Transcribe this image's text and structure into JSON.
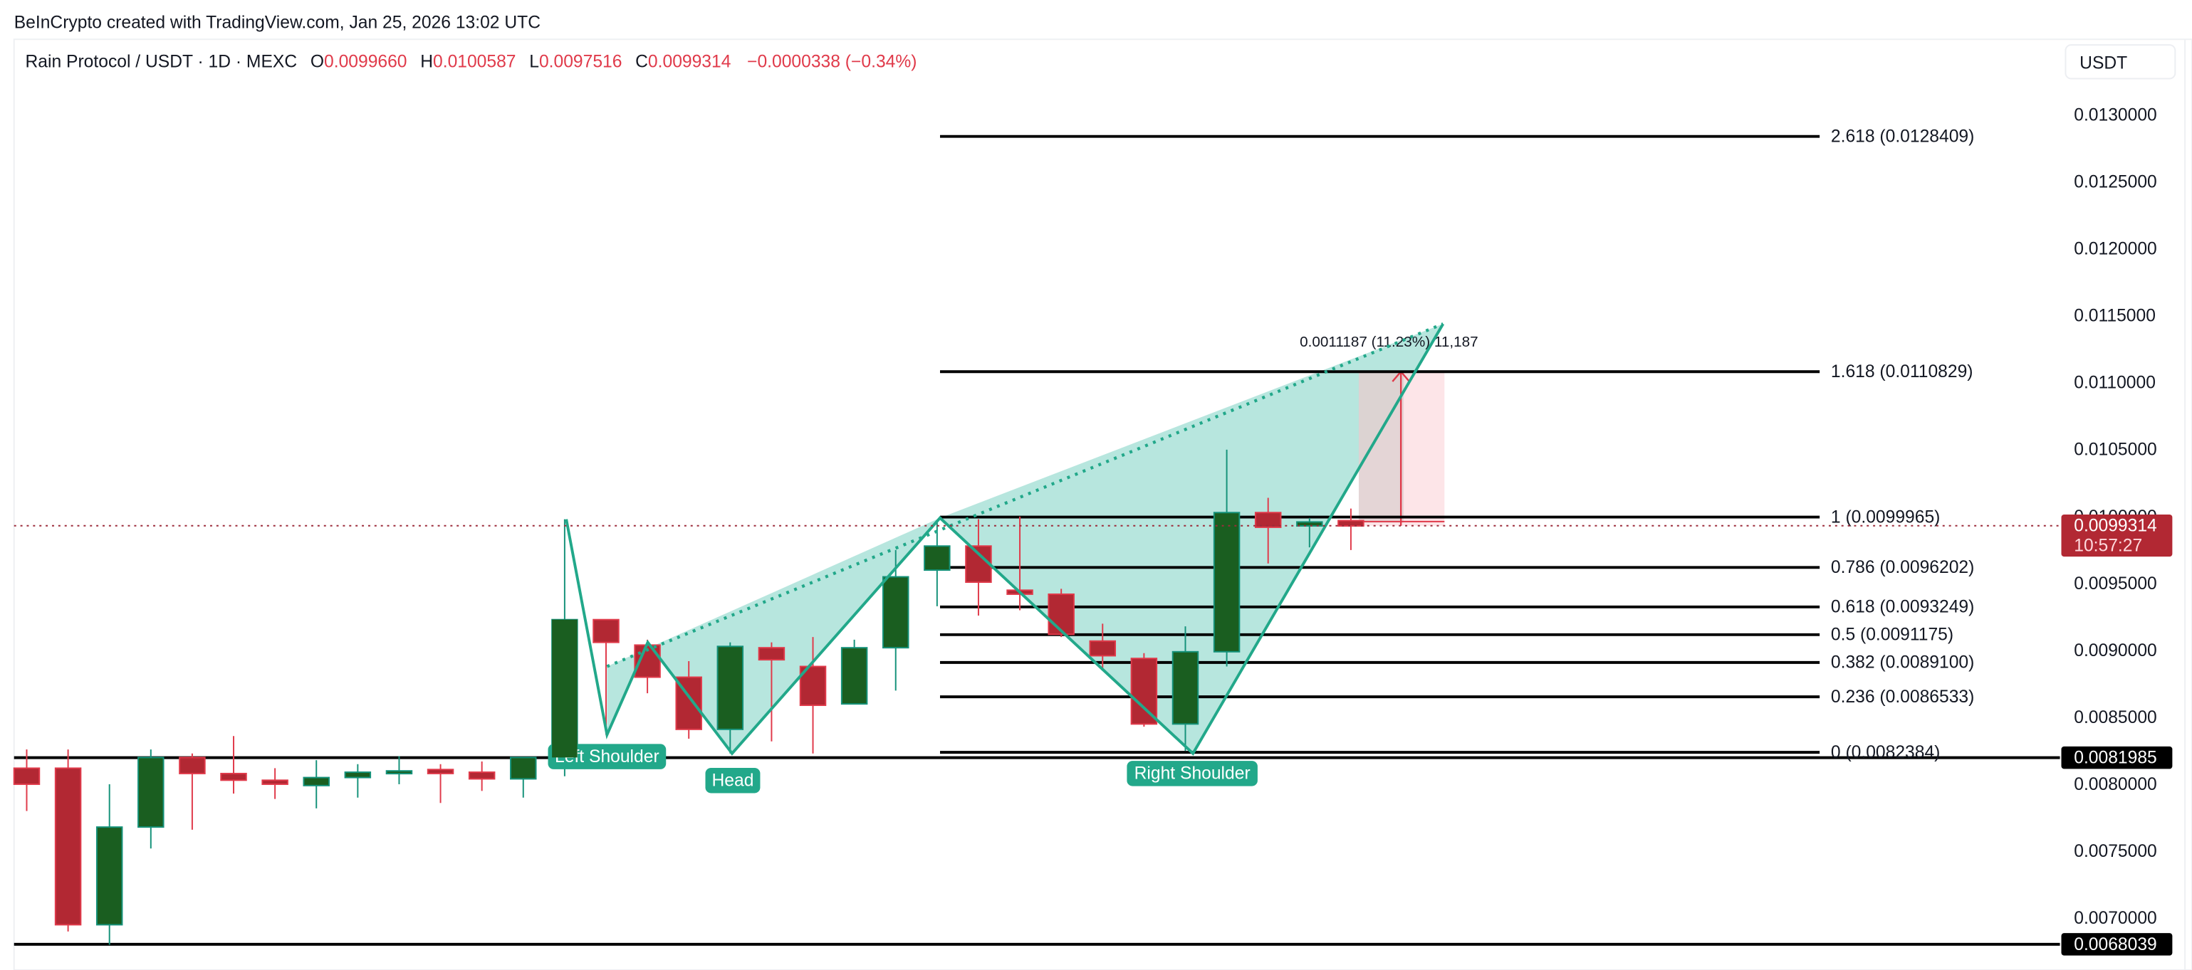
{
  "header": {
    "attribution": "BeInCrypto created with TradingView.com, Jan 25, 2026 13:02 UTC"
  },
  "legend": {
    "symbol": "Rain Protocol / USDT · 1D · MEXC",
    "open_label": "O",
    "open": "0.0099660",
    "high_label": "H",
    "high": "0.0100587",
    "low_label": "L",
    "low": "0.0097516",
    "close_label": "C",
    "close": "0.0099314",
    "change": "−0.0000338 (−0.34%)"
  },
  "axis": {
    "currency_button": "USDT",
    "ticks": [
      "0.0130000",
      "0.0125000",
      "0.0120000",
      "0.0115000",
      "0.0110000",
      "0.0105000",
      "0.0100000",
      "0.0095000",
      "0.0090000",
      "0.0085000",
      "0.0080000",
      "0.0075000",
      "0.0070000"
    ],
    "last_price_label": "0.0099314",
    "countdown": "10:57:27",
    "support_label": "0.0081985",
    "low_support_label": "0.0068039"
  },
  "fib_levels": [
    {
      "ratio": "2.618",
      "price": 0.0128409,
      "label": "2.618 (0.0128409)"
    },
    {
      "ratio": "1.618",
      "price": 0.0110829,
      "label": "1.618 (0.0110829)"
    },
    {
      "ratio": "1",
      "price": 0.0099965,
      "label": "1 (0.0099965)"
    },
    {
      "ratio": "0.786",
      "price": 0.0096202,
      "label": "0.786 (0.0096202)"
    },
    {
      "ratio": "0.618",
      "price": 0.0093249,
      "label": "0.618 (0.0093249)"
    },
    {
      "ratio": "0.5",
      "price": 0.0091175,
      "label": "0.5 (0.0091175)"
    },
    {
      "ratio": "0.382",
      "price": 0.00891,
      "label": "0.382 (0.0089100)"
    },
    {
      "ratio": "0.236",
      "price": 0.0086533,
      "label": "0.236 (0.0086533)"
    },
    {
      "ratio": "0",
      "price": 0.0082384,
      "label": "0 (0.0082384)"
    }
  ],
  "pattern_labels": {
    "left_shoulder": "Left Shoulder",
    "head": "Head",
    "right_shoulder": "Right Shoulder"
  },
  "measure": {
    "label": "0.0011187 (11.23%) 11,187"
  },
  "colors": {
    "up": "#1a5e20",
    "up_border": "#15927a",
    "down": "#b22833",
    "down_border": "#e03a4a",
    "pattern": "#22a88a",
    "pattern_fill": "#b3e5dc",
    "measure_fill": "#fde0e4",
    "last_price": "#b22833"
  },
  "chart_data": {
    "type": "candlestick",
    "title": "Rain Protocol / USDT · 1D · MEXC",
    "ylabel": "USDT",
    "ylim": [
      0.00665,
      0.01335
    ],
    "candles": [
      {
        "o": 0.00812,
        "h": 0.00826,
        "l": 0.0078,
        "c": 0.008
      },
      {
        "o": 0.00812,
        "h": 0.00826,
        "l": 0.0069,
        "c": 0.00695
      },
      {
        "o": 0.00695,
        "h": 0.008,
        "l": 0.0068,
        "c": 0.00768
      },
      {
        "o": 0.00768,
        "h": 0.00826,
        "l": 0.00752,
        "c": 0.0082
      },
      {
        "o": 0.0082,
        "h": 0.00823,
        "l": 0.00766,
        "c": 0.00808
      },
      {
        "o": 0.00808,
        "h": 0.00836,
        "l": 0.00793,
        "c": 0.00803
      },
      {
        "o": 0.00803,
        "h": 0.00812,
        "l": 0.00789,
        "c": 0.008
      },
      {
        "o": 0.00799,
        "h": 0.00818,
        "l": 0.00782,
        "c": 0.00805
      },
      {
        "o": 0.00805,
        "h": 0.00815,
        "l": 0.0079,
        "c": 0.00809
      },
      {
        "o": 0.00809,
        "h": 0.00821,
        "l": 0.008,
        "c": 0.0081
      },
      {
        "o": 0.00811,
        "h": 0.00815,
        "l": 0.00786,
        "c": 0.00808
      },
      {
        "o": 0.00809,
        "h": 0.00817,
        "l": 0.00795,
        "c": 0.00804
      },
      {
        "o": 0.00804,
        "h": 0.0082,
        "l": 0.0079,
        "c": 0.0082
      },
      {
        "o": 0.0082,
        "h": 0.00998,
        "l": 0.00806,
        "c": 0.00923
      },
      {
        "o": 0.00923,
        "h": 0.00923,
        "l": 0.00837,
        "c": 0.00906
      },
      {
        "o": 0.00904,
        "h": 0.00908,
        "l": 0.00868,
        "c": 0.0088
      },
      {
        "o": 0.0088,
        "h": 0.00892,
        "l": 0.00834,
        "c": 0.00841
      },
      {
        "o": 0.00841,
        "h": 0.00906,
        "l": 0.00823,
        "c": 0.00903
      },
      {
        "o": 0.00902,
        "h": 0.00906,
        "l": 0.00832,
        "c": 0.00893
      },
      {
        "o": 0.00888,
        "h": 0.0091,
        "l": 0.00823,
        "c": 0.00859
      },
      {
        "o": 0.0086,
        "h": 0.00908,
        "l": 0.0086,
        "c": 0.00902
      },
      {
        "o": 0.00902,
        "h": 0.00975,
        "l": 0.0087,
        "c": 0.00955
      },
      {
        "o": 0.0096,
        "h": 0.00996,
        "l": 0.00933,
        "c": 0.00978
      },
      {
        "o": 0.00978,
        "h": 0.00998,
        "l": 0.00926,
        "c": 0.00951
      },
      {
        "o": 0.00945,
        "h": 0.01,
        "l": 0.0093,
        "c": 0.00942
      },
      {
        "o": 0.00942,
        "h": 0.00946,
        "l": 0.0091,
        "c": 0.00912
      },
      {
        "o": 0.00907,
        "h": 0.0092,
        "l": 0.00885,
        "c": 0.00896
      },
      {
        "o": 0.00894,
        "h": 0.00898,
        "l": 0.00843,
        "c": 0.00845
      },
      {
        "o": 0.00845,
        "h": 0.00918,
        "l": 0.00825,
        "c": 0.00899
      },
      {
        "o": 0.00899,
        "h": 0.0105,
        "l": 0.00888,
        "c": 0.01003
      },
      {
        "o": 0.01003,
        "h": 0.01014,
        "l": 0.00965,
        "c": 0.00992
      },
      {
        "o": 0.00993,
        "h": 0.00999,
        "l": 0.00977,
        "c": 0.00996
      },
      {
        "o": 0.00997,
        "h": 0.01006,
        "l": 0.00975,
        "c": 0.00993
      }
    ],
    "horizontal_lines": [
      0.0081985,
      0.0068039
    ],
    "annotations": [
      "Left Shoulder",
      "Head",
      "Right Shoulder",
      "0.0011187 (11.23%) 11,187"
    ]
  }
}
